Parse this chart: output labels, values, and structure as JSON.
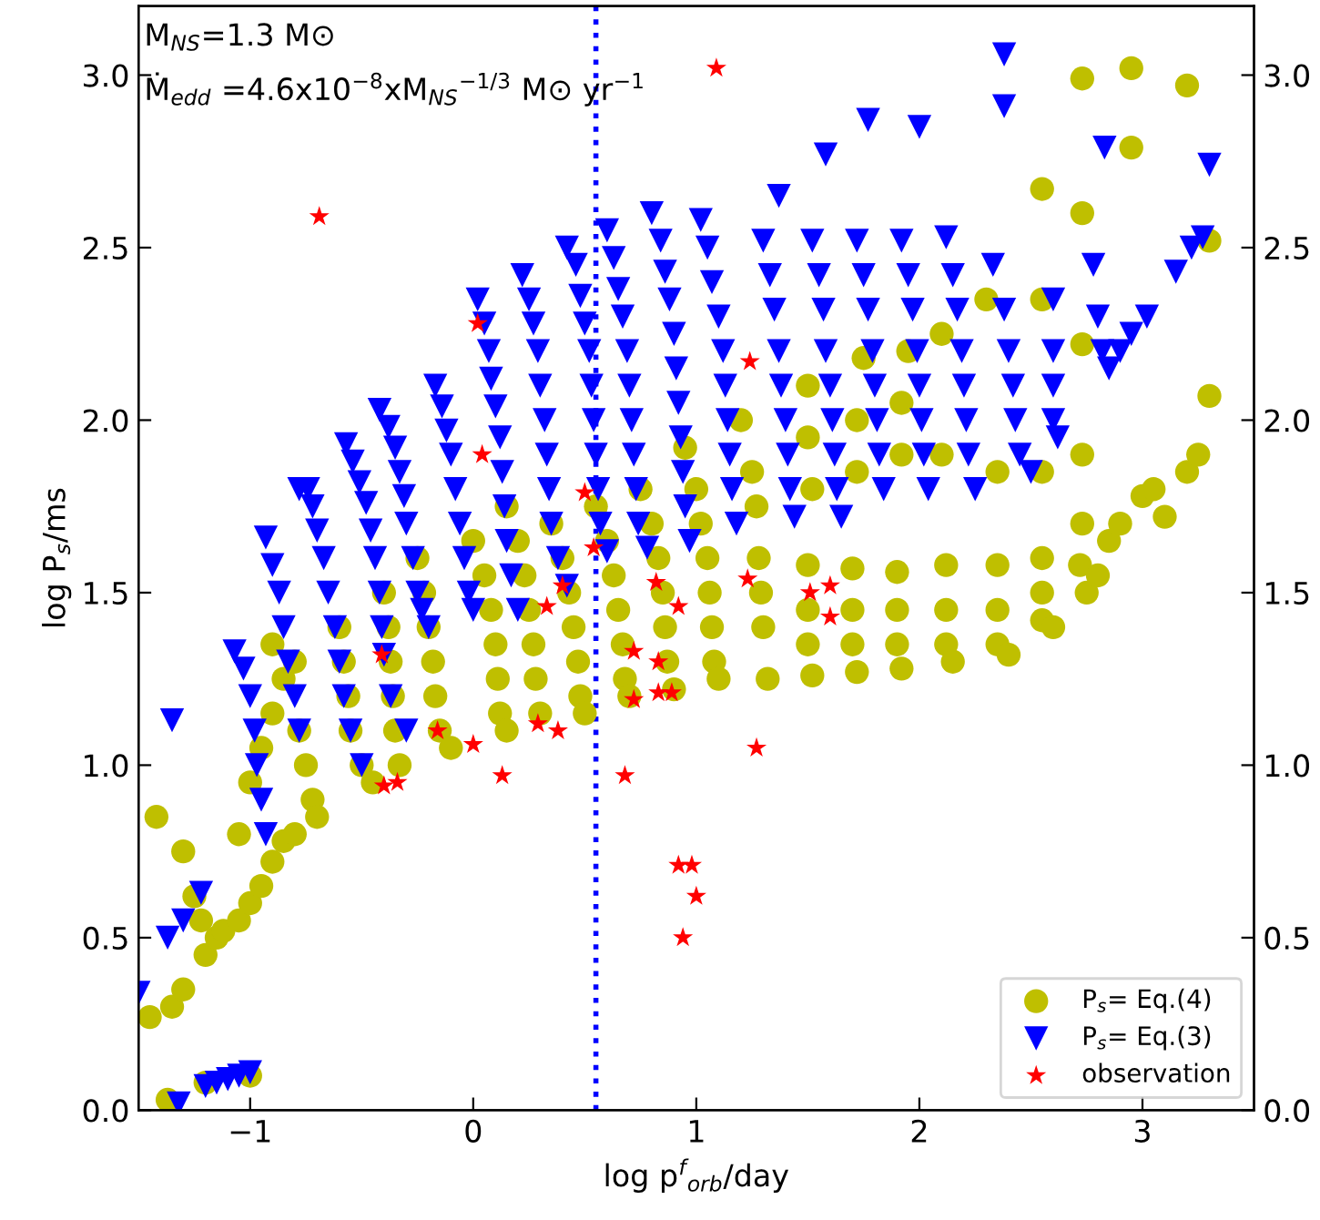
{
  "chart_data": {
    "type": "scatter",
    "xlabel": "log p$^{f}$$_{orb}$/day",
    "ylabel": "log P$_{s}$/ms",
    "annotations": [
      "M$_{NS}$=1.3 M⊙",
      "Ṁ$_{edd}$ =4.6x10$^{−8}$xM$_{NS}$$^{−1/3}$ M⊙ yr$^{−1}$"
    ],
    "xlim": [
      -1.5,
      3.5
    ],
    "xticks": [
      {
        "value": -1,
        "label": "−1"
      },
      0,
      1,
      2,
      3
    ],
    "ylim": [
      0,
      3.2
    ],
    "yticks": [
      {
        "value": 0,
        "label": "0.0"
      },
      0.5,
      {
        "value": 1,
        "label": "1.0"
      },
      1.5,
      {
        "value": 2,
        "label": "2.0"
      },
      2.5,
      {
        "value": 3,
        "label": "3.0"
      }
    ],
    "y2lim": [
      0,
      3.2
    ],
    "y2ticks": [
      {
        "value": 0,
        "label": "0.0"
      },
      0.5,
      {
        "value": 1,
        "label": "1.0"
      },
      1.5,
      {
        "value": 2,
        "label": "2.0"
      },
      2.5,
      {
        "value": 3,
        "label": "3.0"
      }
    ],
    "ref_lines": [
      {
        "axis": "x",
        "value": 0.55,
        "label": null,
        "color": "#0000ff",
        "line_style": "dotted"
      }
    ],
    "legend": "bottom right",
    "grid": false,
    "series": [
      {
        "name": "P$_{s}$= Eq.(4)",
        "color": "#bfbf00",
        "marker": "circle",
        "x": [
          -1.45,
          -1.42,
          -1.35,
          -1.3,
          -1.3,
          -1.25,
          -1.22,
          -1.2,
          -1.15,
          -1.12,
          -1.05,
          -1.0,
          -0.95,
          -0.9,
          -0.85,
          -0.8,
          -1.05,
          -1.0,
          -0.95,
          -0.9,
          -0.85,
          -0.9,
          -0.8,
          -0.78,
          -0.75,
          -0.72,
          -0.7,
          -1.37,
          -1.2,
          -1.0,
          -0.6,
          -0.58,
          -0.56,
          -0.55,
          -0.5,
          -0.45,
          -0.4,
          -0.38,
          -0.37,
          -0.36,
          -0.35,
          -0.33,
          -0.25,
          -0.22,
          -0.2,
          -0.18,
          -0.17,
          -0.15,
          -0.1,
          0.0,
          0.05,
          0.08,
          0.1,
          0.11,
          0.12,
          0.15,
          0.15,
          0.2,
          0.23,
          0.25,
          0.27,
          0.28,
          0.3,
          0.35,
          0.4,
          0.43,
          0.45,
          0.47,
          0.48,
          0.5,
          0.55,
          0.6,
          0.63,
          0.65,
          0.67,
          0.68,
          0.7,
          0.75,
          0.8,
          0.83,
          0.85,
          0.86,
          0.87,
          0.9,
          0.95,
          1.0,
          1.02,
          1.05,
          1.06,
          1.07,
          1.08,
          1.1,
          1.2,
          1.25,
          1.27,
          1.28,
          1.29,
          1.3,
          1.32,
          1.5,
          1.5,
          1.52,
          1.5,
          1.5,
          1.5,
          1.52,
          1.75,
          1.72,
          1.72,
          1.7,
          1.7,
          1.7,
          1.72,
          1.95,
          1.92,
          1.92,
          1.9,
          1.9,
          1.9,
          1.92,
          2.1,
          2.1,
          2.12,
          2.12,
          2.12,
          2.15,
          2.3,
          2.35,
          2.35,
          2.35,
          2.35,
          2.4,
          2.55,
          2.55,
          2.55,
          2.55,
          2.55,
          2.55,
          2.6,
          2.73,
          2.73,
          2.73,
          2.73,
          2.73,
          2.72,
          2.75,
          2.8,
          2.85,
          2.9,
          2.95,
          2.95,
          3.0,
          3.05,
          3.1,
          3.2,
          3.2,
          3.25,
          3.3,
          3.3
        ],
        "values": [
          0.27,
          0.85,
          0.3,
          0.35,
          0.75,
          0.62,
          0.55,
          0.45,
          0.5,
          0.52,
          0.55,
          0.6,
          0.65,
          0.72,
          0.78,
          0.8,
          0.8,
          0.95,
          1.05,
          1.15,
          1.25,
          1.35,
          1.3,
          1.1,
          1.0,
          0.9,
          0.85,
          0.03,
          0.08,
          0.1,
          1.4,
          1.3,
          1.2,
          1.1,
          1.0,
          0.95,
          1.5,
          1.4,
          1.3,
          1.2,
          1.1,
          1.0,
          1.6,
          1.5,
          1.4,
          1.3,
          1.2,
          1.1,
          1.05,
          1.65,
          1.55,
          1.45,
          1.35,
          1.25,
          1.15,
          1.1,
          1.75,
          1.65,
          1.55,
          1.45,
          1.35,
          1.25,
          1.15,
          1.7,
          1.6,
          1.5,
          1.4,
          1.3,
          1.2,
          1.15,
          1.75,
          1.65,
          1.55,
          1.45,
          1.35,
          1.25,
          1.2,
          1.8,
          1.7,
          1.6,
          1.5,
          1.4,
          1.3,
          1.22,
          1.92,
          1.8,
          1.7,
          1.6,
          1.5,
          1.4,
          1.3,
          1.25,
          2.0,
          1.85,
          1.75,
          1.6,
          1.5,
          1.4,
          1.25,
          2.1,
          1.95,
          1.8,
          1.58,
          1.45,
          1.35,
          1.26,
          2.18,
          2.0,
          1.85,
          1.57,
          1.45,
          1.35,
          1.27,
          2.2,
          2.05,
          1.9,
          1.56,
          1.45,
          1.35,
          1.28,
          2.25,
          1.9,
          1.58,
          1.45,
          1.35,
          1.3,
          2.35,
          1.85,
          1.58,
          1.45,
          1.35,
          1.32,
          2.67,
          2.35,
          1.85,
          1.6,
          1.5,
          1.42,
          1.4,
          2.99,
          2.6,
          2.22,
          1.9,
          1.7,
          1.58,
          1.5,
          1.55,
          1.65,
          1.7,
          3.02,
          2.79,
          1.78,
          1.8,
          1.72,
          2.97,
          1.85,
          1.9,
          2.07,
          2.52
        ]
      },
      {
        "name": "P$_{s}$= Eq.(3)",
        "color": "#0000ff",
        "marker": "triangle",
        "x": [
          -1.5,
          -1.37,
          -1.3,
          -1.22,
          -1.32,
          -1.2,
          -1.15,
          -1.1,
          -1.05,
          -1.0,
          -1.35,
          -1.07,
          -1.03,
          -1.0,
          -0.98,
          -0.97,
          -0.95,
          -0.93,
          -0.93,
          -0.9,
          -0.87,
          -0.85,
          -0.83,
          -0.8,
          -0.78,
          -0.78,
          -0.74,
          -0.72,
          -0.7,
          -0.67,
          -0.65,
          -0.62,
          -0.6,
          -0.58,
          -0.55,
          -0.5,
          -0.57,
          -0.54,
          -0.51,
          -0.48,
          -0.46,
          -0.44,
          -0.42,
          -0.41,
          -0.4,
          -0.37,
          -0.3,
          -0.42,
          -0.38,
          -0.35,
          -0.33,
          -0.31,
          -0.3,
          -0.27,
          -0.25,
          -0.23,
          -0.2,
          -0.17,
          -0.14,
          -0.12,
          -0.1,
          -0.08,
          -0.06,
          -0.04,
          -0.02,
          0.0,
          0.02,
          0.05,
          0.07,
          0.08,
          0.1,
          0.12,
          0.13,
          0.14,
          0.15,
          0.17,
          0.2,
          0.22,
          0.25,
          0.27,
          0.29,
          0.3,
          0.32,
          0.33,
          0.34,
          0.35,
          0.38,
          0.42,
          0.42,
          0.46,
          0.48,
          0.5,
          0.52,
          0.53,
          0.54,
          0.55,
          0.56,
          0.57,
          0.6,
          0.6,
          0.63,
          0.65,
          0.67,
          0.69,
          0.7,
          0.71,
          0.72,
          0.73,
          0.74,
          0.78,
          0.8,
          0.84,
          0.86,
          0.88,
          0.9,
          0.91,
          0.92,
          0.93,
          0.94,
          0.95,
          0.97,
          1.02,
          1.05,
          1.07,
          1.1,
          1.12,
          1.13,
          1.14,
          1.15,
          1.16,
          1.18,
          1.3,
          1.33,
          1.35,
          1.37,
          1.38,
          1.4,
          1.41,
          1.42,
          1.44,
          1.52,
          1.55,
          1.57,
          1.58,
          1.6,
          1.61,
          1.62,
          1.63,
          1.65,
          1.72,
          1.75,
          1.77,
          1.79,
          1.8,
          1.81,
          1.82,
          1.84,
          1.92,
          1.95,
          1.97,
          1.99,
          2.0,
          2.01,
          2.02,
          2.04,
          2.12,
          2.15,
          2.17,
          2.19,
          2.2,
          2.21,
          2.22,
          2.25,
          2.33,
          2.38,
          2.4,
          2.42,
          2.43,
          2.45,
          2.5,
          2.6,
          2.6,
          2.6,
          2.6,
          2.62,
          2.78,
          2.8,
          2.82,
          2.85,
          2.9,
          2.95,
          3.02,
          3.15,
          3.22,
          3.27,
          3.3,
          1.37,
          1.58,
          1.77,
          2.0,
          2.38,
          2.38,
          2.83
        ],
        "values": [
          0.34,
          0.5,
          0.55,
          0.63,
          0.02,
          0.07,
          0.08,
          0.09,
          0.1,
          0.11,
          1.13,
          1.33,
          1.28,
          1.2,
          1.1,
          1.0,
          0.9,
          0.8,
          1.66,
          1.58,
          1.5,
          1.4,
          1.3,
          1.2,
          1.1,
          1.8,
          1.8,
          1.75,
          1.68,
          1.6,
          1.5,
          1.4,
          1.3,
          1.2,
          1.1,
          1.0,
          1.93,
          1.88,
          1.82,
          1.76,
          1.68,
          1.6,
          1.5,
          1.4,
          1.32,
          1.2,
          1.1,
          2.03,
          1.98,
          1.92,
          1.85,
          1.78,
          1.7,
          1.6,
          1.5,
          1.45,
          1.4,
          2.1,
          2.04,
          1.97,
          1.9,
          1.8,
          1.7,
          1.6,
          1.5,
          1.45,
          2.35,
          2.28,
          2.2,
          2.12,
          2.04,
          1.95,
          1.85,
          1.75,
          1.65,
          1.55,
          1.45,
          2.42,
          2.35,
          2.28,
          2.2,
          2.1,
          2.0,
          1.9,
          1.8,
          1.7,
          1.6,
          1.52,
          2.5,
          2.45,
          2.36,
          2.28,
          2.2,
          2.1,
          2.0,
          1.9,
          1.8,
          1.7,
          1.62,
          2.55,
          2.47,
          2.38,
          2.3,
          2.2,
          2.1,
          2.0,
          1.9,
          1.8,
          1.7,
          1.63,
          2.6,
          2.52,
          2.43,
          2.35,
          2.25,
          2.15,
          2.05,
          1.95,
          1.85,
          1.75,
          1.65,
          2.58,
          2.5,
          2.4,
          2.3,
          2.2,
          2.1,
          2.0,
          1.9,
          1.8,
          1.7,
          2.52,
          2.42,
          2.32,
          2.2,
          2.1,
          2.0,
          1.9,
          1.8,
          1.72,
          2.52,
          2.42,
          2.32,
          2.2,
          2.1,
          2.0,
          1.9,
          1.8,
          1.72,
          2.52,
          2.42,
          2.32,
          2.2,
          2.1,
          2.0,
          1.9,
          1.8,
          2.52,
          2.42,
          2.32,
          2.2,
          2.1,
          2.0,
          1.9,
          1.8,
          2.53,
          2.42,
          2.32,
          2.2,
          2.1,
          2.0,
          1.9,
          1.8,
          2.45,
          2.32,
          2.2,
          2.1,
          2.0,
          1.9,
          1.85,
          2.35,
          2.2,
          2.1,
          2.0,
          1.95,
          2.45,
          2.3,
          2.2,
          2.15,
          2.2,
          2.25,
          2.3,
          2.43,
          2.5,
          2.53,
          2.74,
          2.65,
          2.77,
          2.87,
          2.85,
          2.91,
          3.06,
          2.79
        ]
      },
      {
        "name": "observation",
        "color": "#ff0000",
        "marker": "star",
        "x": [
          -0.69,
          1.09,
          0.02,
          0.04,
          1.24,
          0.5,
          0.54,
          0.33,
          0.4,
          -0.41,
          0.83,
          0.92,
          0.72,
          1.23,
          1.51,
          1.6,
          1.6,
          -0.16,
          0.0,
          0.29,
          0.38,
          -0.4,
          -0.34,
          0.13,
          0.68,
          0.72,
          0.83,
          0.89,
          1.27,
          0.92,
          0.98,
          1.0,
          0.94,
          0.82
        ],
        "values": [
          2.59,
          3.02,
          2.28,
          1.9,
          2.17,
          1.79,
          1.63,
          1.46,
          1.52,
          1.32,
          1.3,
          1.46,
          1.33,
          1.54,
          1.5,
          1.52,
          1.43,
          1.1,
          1.06,
          1.12,
          1.1,
          0.94,
          0.95,
          0.97,
          0.97,
          1.19,
          1.21,
          1.21,
          1.05,
          0.71,
          0.71,
          0.62,
          0.5,
          1.53
        ]
      }
    ]
  }
}
